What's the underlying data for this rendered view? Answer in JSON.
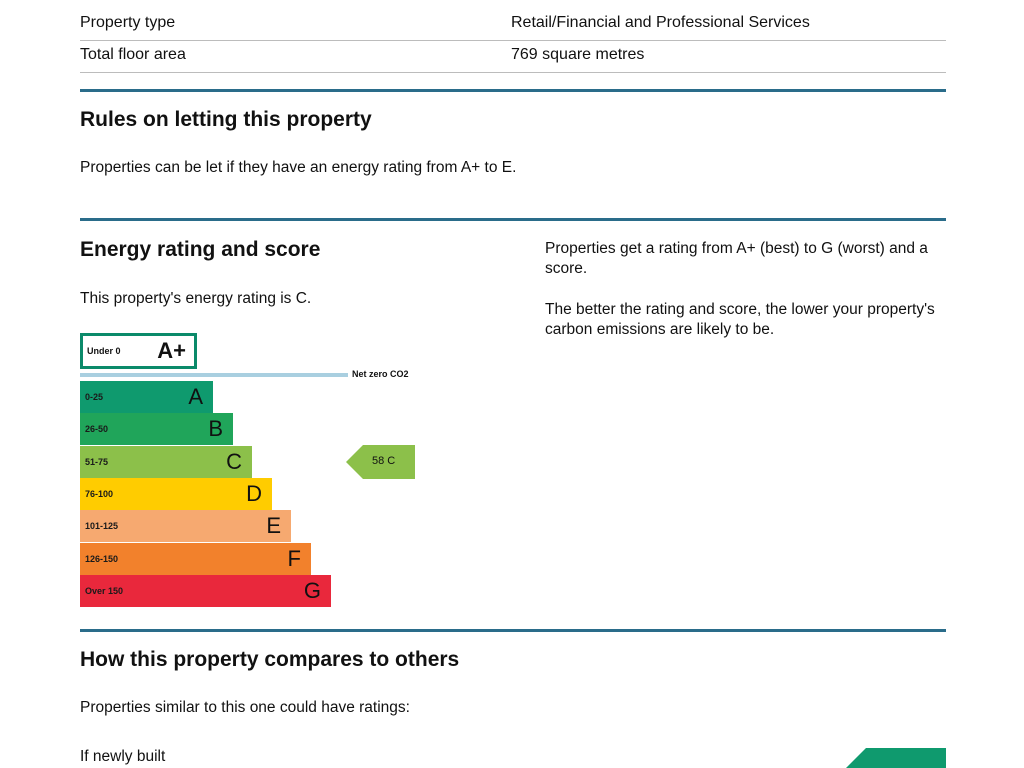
{
  "property_rows": [
    {
      "label": "Property type",
      "value": "Retail/Financial and Professional Services"
    },
    {
      "label": "Total floor area",
      "value": "769 square metres"
    }
  ],
  "letting": {
    "heading": "Rules on letting this property",
    "text": "Properties can be let if they have an energy rating from A+ to E."
  },
  "energy": {
    "heading": "Energy rating and score",
    "current_text": "This property's energy rating is C.",
    "side_text_1": "Properties get a rating from A+ (best) to G (worst) and a score.",
    "side_text_2": "The better the rating and score, the lower your property's carbon emissions are likely to be.",
    "net_zero_label": "Net zero CO2",
    "current_score_label": "58 C",
    "current_score": 58,
    "current_rating": "C",
    "bands": [
      {
        "range": "Under 0",
        "letter": "A+",
        "color": "#ffffff"
      },
      {
        "range": "0-25",
        "letter": "A",
        "color": "#0f9a6e"
      },
      {
        "range": "26-50",
        "letter": "B",
        "color": "#20a55a"
      },
      {
        "range": "51-75",
        "letter": "C",
        "color": "#8cc04a"
      },
      {
        "range": "76-100",
        "letter": "D",
        "color": "#ffcc00"
      },
      {
        "range": "101-125",
        "letter": "E",
        "color": "#f6a970"
      },
      {
        "range": "126-150",
        "letter": "F",
        "color": "#f2812c"
      },
      {
        "range": "Over 150",
        "letter": "G",
        "color": "#e9283c"
      }
    ],
    "pointer_color": "#8cc04a"
  },
  "compare": {
    "heading": "How this property compares to others",
    "text": "Properties similar to this one could have ratings:",
    "newly_built": "If newly built"
  }
}
